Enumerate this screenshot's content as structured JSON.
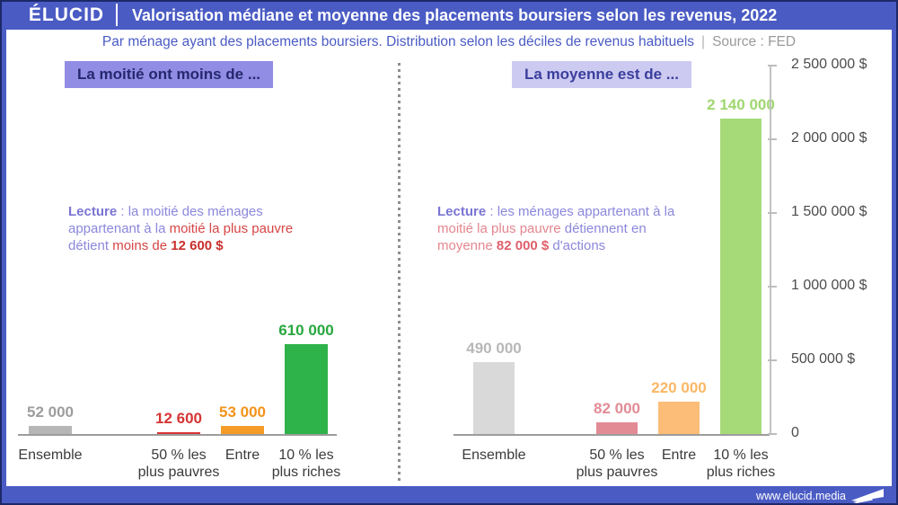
{
  "header": {
    "logo": "ÉLUCID",
    "title": "Valorisation médiane et moyenne des placements boursiers selon les revenus, 2022"
  },
  "subtitle": {
    "text": "Par ménage ayant des placements boursiers. Distribution selon les déciles de revenus habituels",
    "separator": "|",
    "source": "Source : FED"
  },
  "footer": {
    "url": "www.elucid.media",
    "icon": "elucid-swoosh-icon"
  },
  "colors": {
    "frame_blue": "#4a5bc4",
    "frame_outline": "#1d2868",
    "chip_left_bg": "#918ce4",
    "chip_right_bg": "#cdcaf2",
    "lecture_purple": "#8c87dc",
    "lecture_red": "#d64545",
    "lecture_pink": "#e4868f",
    "axis_gray": "#c2c2c2"
  },
  "charts": {
    "median": {
      "chip": "La moitié ont moins de ...",
      "lecture": [
        {
          "text": "Lecture",
          "style": "label"
        },
        {
          "text": " : la moitié des ménages appartenant à la ",
          "style": "purple"
        },
        {
          "text": "moitié la plus pauvre",
          "style": "red"
        },
        {
          "text": " détient ",
          "style": "purple"
        },
        {
          "text": "moins de ",
          "style": "red"
        },
        {
          "text": "12 600 $",
          "style": "red-bold"
        }
      ],
      "bars": [
        {
          "id": "ensemble",
          "category": [
            "Ensemble"
          ],
          "value": 52000,
          "label": "52 000",
          "color": "#b6b6b6",
          "label_color": "#9d9d9d"
        },
        {
          "id": "50-plus-pauvres",
          "category": [
            "50 % les",
            "plus pauvres"
          ],
          "value": 12600,
          "label": "12 600",
          "color": "#d63434",
          "label_color": "#d63434"
        },
        {
          "id": "entre",
          "category": [
            "Entre"
          ],
          "value": 53000,
          "label": "53 000",
          "color": "#f59b27",
          "label_color": "#f2931a"
        },
        {
          "id": "10-plus-riches",
          "category": [
            "10 % les",
            "plus riches"
          ],
          "value": 610000,
          "label": "610 000",
          "color": "#2eb24a",
          "label_color": "#28a73f"
        }
      ]
    },
    "mean": {
      "chip": "La moyenne est de ...",
      "lecture": [
        {
          "text": "Lecture",
          "style": "label"
        },
        {
          "text": " : les ménages appartenant à la ",
          "style": "purple"
        },
        {
          "text": "moitié la plus pauvre",
          "style": "pink"
        },
        {
          "text": " détiennent en ",
          "style": "purple"
        },
        {
          "text": "moyenne ",
          "style": "pink"
        },
        {
          "text": "82 000 $",
          "style": "pink-bold"
        },
        {
          "text": " d'actions",
          "style": "purple"
        }
      ],
      "bars": [
        {
          "id": "ensemble",
          "category": [
            "Ensemble"
          ],
          "value": 490000,
          "label": "490 000",
          "color": "#d9d9d9",
          "label_color": "#b8b8b8"
        },
        {
          "id": "50-plus-pauvres",
          "category": [
            "50 % les",
            "plus pauvres"
          ],
          "value": 82000,
          "label": "82 000",
          "color": "#e28b95",
          "label_color": "#e28b95"
        },
        {
          "id": "entre",
          "category": [
            "Entre"
          ],
          "value": 220000,
          "label": "220 000",
          "color": "#fbbd77",
          "label_color": "#fbb765"
        },
        {
          "id": "10-plus-riches",
          "category": [
            "10 % les",
            "plus riches"
          ],
          "value": 2140000,
          "label": "2 140 000",
          "color": "#a6da79",
          "label_color": "#a0d76f"
        }
      ],
      "axis": {
        "ticks": [
          {
            "label": "2 500 000 $",
            "value": 2500000
          },
          {
            "label": "2 000 000 $",
            "value": 2000000
          },
          {
            "label": "1 500 000 $",
            "value": 1500000
          },
          {
            "label": "1 000 000 $",
            "value": 1000000
          },
          {
            "label": "500 000 $",
            "value": 500000
          },
          {
            "label": "0",
            "value": 0
          }
        ]
      }
    }
  },
  "chart_data": [
    {
      "type": "bar",
      "title": "La moitié ont moins de ...",
      "categories": [
        "Ensemble",
        "50 % les plus pauvres",
        "Entre",
        "10 % les plus riches"
      ],
      "values": [
        52000,
        12600,
        53000,
        610000
      ],
      "value_labels": [
        "52 000",
        "12 600",
        "53 000",
        "610 000"
      ],
      "bar_colors": [
        "#b6b6b6",
        "#d63434",
        "#f59b27",
        "#2eb24a"
      ],
      "xlabel": "",
      "ylabel": "",
      "ylim": [
        0,
        2500000
      ],
      "grid": false,
      "legend": false,
      "note": "shares y scale with mean chart"
    },
    {
      "type": "bar",
      "title": "La moyenne est de ...",
      "categories": [
        "Ensemble",
        "50 % les plus pauvres",
        "Entre",
        "10 % les plus riches"
      ],
      "values": [
        490000,
        82000,
        220000,
        2140000
      ],
      "value_labels": [
        "490 000",
        "82 000",
        "220 000",
        "2 140 000"
      ],
      "bar_colors": [
        "#d9d9d9",
        "#e28b95",
        "#fbbd77",
        "#a6da79"
      ],
      "xlabel": "",
      "ylabel": "",
      "ylim": [
        0,
        2500000
      ],
      "yticks": [
        0,
        500000,
        1000000,
        1500000,
        2000000,
        2500000
      ],
      "ytick_labels": [
        "0",
        "500 000 $",
        "1 000 000 $",
        "1 500 000 $",
        "2 000 000 $",
        "2 500 000 $"
      ],
      "grid": false,
      "legend": false
    }
  ]
}
